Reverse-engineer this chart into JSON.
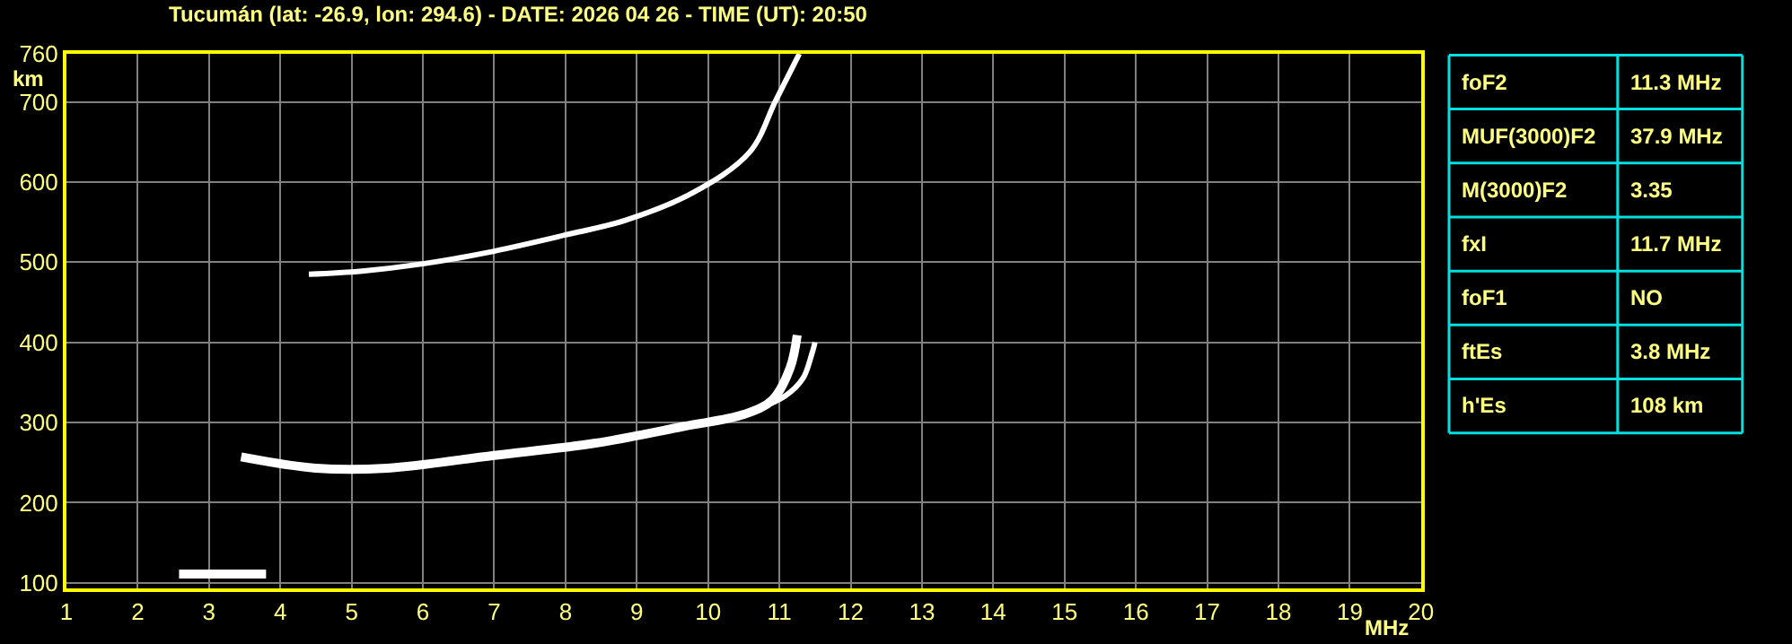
{
  "chart_data": [
    {
      "type": "line",
      "title": "Tucumán (lat: -26.9, lon: 294.6) - DATE: 2026 04 26 - TIME (UT): 20:50",
      "xlabel": "MHz",
      "ylabel": "km",
      "series": [
        {
          "color": "#ffffff",
          "x": [
            2.58,
            3.0,
            3.4,
            3.8
          ],
          "values": [
            111,
            111,
            111,
            111
          ]
        },
        {
          "color": "#ffffff",
          "x": [
            3.45,
            4.5,
            5.5,
            7.0,
            8.4,
            9.65,
            10.5,
            10.9,
            11.15,
            11.25
          ],
          "values": [
            257,
            243,
            243,
            259,
            274,
            295,
            310,
            328,
            368,
            409
          ]
        },
        {
          "color": "#ffffff",
          "x": [
            10.5,
            11.08,
            11.33,
            11.45,
            11.5
          ],
          "values": [
            310,
            333,
            355,
            384,
            400
          ]
        },
        {
          "color": "#ffffff",
          "x": [
            4.4,
            5.15,
            6.0,
            6.9,
            8.0,
            8.83,
            9.75,
            10.58,
            10.95,
            11.28
          ],
          "values": [
            485,
            489,
            498,
            512,
            534,
            552,
            585,
            637,
            702,
            760
          ]
        }
      ],
      "xlim": [
        1,
        20
      ],
      "xticks": [
        1,
        2,
        3,
        4,
        5,
        6,
        7,
        8,
        9,
        10,
        11,
        12,
        13,
        14,
        15,
        16,
        17,
        18,
        19,
        20
      ],
      "ylim": [
        93,
        760
      ],
      "yticks": [
        100,
        200,
        300,
        400,
        500,
        600,
        700,
        760
      ],
      "grid": true,
      "marker": "none",
      "line_style": "solid"
    },
    {
      "type": "other",
      "categories": [
        "foF2",
        "MUF(3000)F2",
        "M(3000)F2",
        "fxI",
        "foF1",
        "ftEs",
        "h'Es"
      ],
      "value_labels": [
        "11.3 MHz",
        "37.9 MHz",
        "3.35",
        "11.7 MHz",
        "NO",
        "3.8 MHz",
        "108 km"
      ]
    }
  ]
}
